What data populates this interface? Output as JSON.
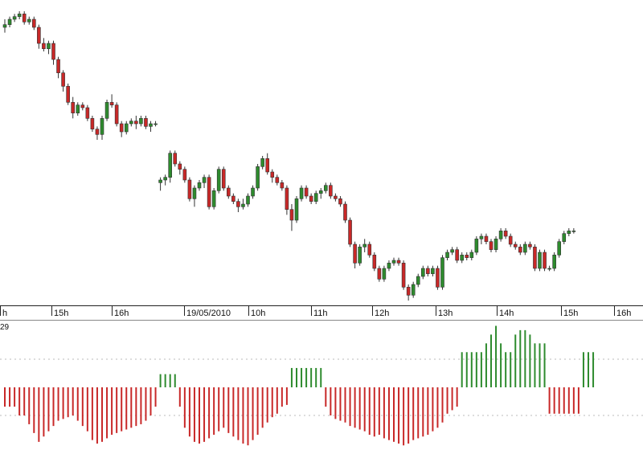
{
  "chart_data": [
    {
      "type": "candlestick",
      "title": "",
      "colors": {
        "up": "#2e8b2e",
        "down": "#c82828",
        "wick": "#333333"
      },
      "y_scale": "arbitrary, no price axis printed",
      "x_tick_labels": [
        "h",
        "15h",
        "16h",
        "19/05/2010",
        "10h",
        "11h",
        "12h",
        "13h",
        "14h",
        "15h",
        "16h"
      ],
      "candles": [
        {
          "o": 56.0,
          "h": 57.5,
          "l": 55.0,
          "c": 56.5
        },
        {
          "o": 56.5,
          "h": 58.0,
          "l": 56.0,
          "c": 57.5
        },
        {
          "o": 57.5,
          "h": 58.5,
          "l": 57.0,
          "c": 58.0
        },
        {
          "o": 58.0,
          "h": 59.0,
          "l": 57.5,
          "c": 58.5
        },
        {
          "o": 58.5,
          "h": 59.0,
          "l": 56.5,
          "c": 57.0
        },
        {
          "o": 57.0,
          "h": 58.0,
          "l": 56.5,
          "c": 57.5
        },
        {
          "o": 57.5,
          "h": 58.0,
          "l": 55.5,
          "c": 56.0
        },
        {
          "o": 56.0,
          "h": 56.5,
          "l": 52.0,
          "c": 53.0
        },
        {
          "o": 53.0,
          "h": 54.0,
          "l": 51.5,
          "c": 52.0
        },
        {
          "o": 52.0,
          "h": 53.5,
          "l": 51.0,
          "c": 53.0
        },
        {
          "o": 53.0,
          "h": 53.5,
          "l": 49.0,
          "c": 50.0
        },
        {
          "o": 50.0,
          "h": 50.5,
          "l": 46.5,
          "c": 47.5
        },
        {
          "o": 47.5,
          "h": 48.0,
          "l": 44.0,
          "c": 45.0
        },
        {
          "o": 45.0,
          "h": 45.5,
          "l": 41.5,
          "c": 42.0
        },
        {
          "o": 42.0,
          "h": 43.0,
          "l": 39.0,
          "c": 40.0
        },
        {
          "o": 40.0,
          "h": 42.0,
          "l": 39.5,
          "c": 41.5
        },
        {
          "o": 41.5,
          "h": 42.0,
          "l": 40.5,
          "c": 41.0
        },
        {
          "o": 41.0,
          "h": 41.5,
          "l": 38.5,
          "c": 39.0
        },
        {
          "o": 39.0,
          "h": 39.5,
          "l": 36.5,
          "c": 37.0
        },
        {
          "o": 37.0,
          "h": 37.5,
          "l": 35.0,
          "c": 36.0
        },
        {
          "o": 36.0,
          "h": 39.5,
          "l": 35.0,
          "c": 39.0
        },
        {
          "o": 39.0,
          "h": 42.5,
          "l": 38.5,
          "c": 42.0
        },
        {
          "o": 42.0,
          "h": 43.5,
          "l": 41.0,
          "c": 41.5
        },
        {
          "o": 41.5,
          "h": 42.0,
          "l": 37.5,
          "c": 38.0
        },
        {
          "o": 38.0,
          "h": 38.5,
          "l": 35.5,
          "c": 36.5
        },
        {
          "o": 36.5,
          "h": 38.5,
          "l": 36.0,
          "c": 38.0
        },
        {
          "o": 38.0,
          "h": 39.0,
          "l": 37.5,
          "c": 38.5
        },
        {
          "o": 38.5,
          "h": 39.5,
          "l": 37.0,
          "c": 38.0
        },
        {
          "o": 38.0,
          "h": 39.5,
          "l": 37.5,
          "c": 39.0
        },
        {
          "o": 39.0,
          "h": 39.5,
          "l": 37.0,
          "c": 37.5
        },
        {
          "o": 37.5,
          "h": 38.5,
          "l": 36.5,
          "c": 38.0
        },
        {
          "o": 38.0,
          "h": 38.5,
          "l": 37.5,
          "c": 38.0
        },
        {
          "o": 27.0,
          "h": 28.0,
          "l": 25.5,
          "c": 27.5
        },
        {
          "o": 27.5,
          "h": 28.5,
          "l": 26.5,
          "c": 28.0
        },
        {
          "o": 28.0,
          "h": 33.0,
          "l": 27.0,
          "c": 32.5
        },
        {
          "o": 32.5,
          "h": 33.0,
          "l": 30.0,
          "c": 30.5
        },
        {
          "o": 30.5,
          "h": 31.0,
          "l": 28.5,
          "c": 29.5
        },
        {
          "o": 29.5,
          "h": 30.0,
          "l": 27.0,
          "c": 27.5
        },
        {
          "o": 27.5,
          "h": 28.0,
          "l": 23.5,
          "c": 24.0
        },
        {
          "o": 24.0,
          "h": 26.5,
          "l": 22.5,
          "c": 26.0
        },
        {
          "o": 26.0,
          "h": 27.5,
          "l": 25.5,
          "c": 27.0
        },
        {
          "o": 27.0,
          "h": 28.5,
          "l": 26.0,
          "c": 28.0
        },
        {
          "o": 28.0,
          "h": 28.5,
          "l": 22.0,
          "c": 22.5
        },
        {
          "o": 22.5,
          "h": 26.0,
          "l": 22.0,
          "c": 25.5
        },
        {
          "o": 25.5,
          "h": 30.0,
          "l": 25.0,
          "c": 29.5
        },
        {
          "o": 29.5,
          "h": 30.0,
          "l": 25.5,
          "c": 26.0
        },
        {
          "o": 26.0,
          "h": 26.5,
          "l": 24.0,
          "c": 24.5
        },
        {
          "o": 24.5,
          "h": 25.0,
          "l": 23.0,
          "c": 23.5
        },
        {
          "o": 23.5,
          "h": 24.0,
          "l": 21.5,
          "c": 22.5
        },
        {
          "o": 22.5,
          "h": 24.0,
          "l": 22.0,
          "c": 23.0
        },
        {
          "o": 23.0,
          "h": 25.0,
          "l": 22.5,
          "c": 24.5
        },
        {
          "o": 24.5,
          "h": 26.5,
          "l": 24.0,
          "c": 26.0
        },
        {
          "o": 26.0,
          "h": 30.5,
          "l": 25.5,
          "c": 30.0
        },
        {
          "o": 30.0,
          "h": 32.0,
          "l": 29.5,
          "c": 31.5
        },
        {
          "o": 31.5,
          "h": 32.5,
          "l": 28.5,
          "c": 29.0
        },
        {
          "o": 29.0,
          "h": 29.5,
          "l": 27.0,
          "c": 28.0
        },
        {
          "o": 28.0,
          "h": 28.5,
          "l": 26.5,
          "c": 27.0
        },
        {
          "o": 27.0,
          "h": 27.5,
          "l": 25.5,
          "c": 26.0
        },
        {
          "o": 26.0,
          "h": 26.5,
          "l": 21.0,
          "c": 22.0
        },
        {
          "o": 22.0,
          "h": 23.0,
          "l": 18.0,
          "c": 20.0
        },
        {
          "o": 20.0,
          "h": 24.5,
          "l": 19.5,
          "c": 24.0
        },
        {
          "o": 24.0,
          "h": 26.5,
          "l": 23.5,
          "c": 26.0
        },
        {
          "o": 26.0,
          "h": 26.5,
          "l": 24.0,
          "c": 24.5
        },
        {
          "o": 24.5,
          "h": 25.0,
          "l": 23.0,
          "c": 23.5
        },
        {
          "o": 23.5,
          "h": 25.5,
          "l": 23.0,
          "c": 25.0
        },
        {
          "o": 25.0,
          "h": 26.0,
          "l": 24.0,
          "c": 25.5
        },
        {
          "o": 25.5,
          "h": 27.0,
          "l": 25.0,
          "c": 26.5
        },
        {
          "o": 26.5,
          "h": 27.0,
          "l": 24.0,
          "c": 24.5
        },
        {
          "o": 24.5,
          "h": 25.0,
          "l": 23.5,
          "c": 24.0
        },
        {
          "o": 24.0,
          "h": 24.5,
          "l": 22.5,
          "c": 23.0
        },
        {
          "o": 23.0,
          "h": 23.5,
          "l": 19.5,
          "c": 20.0
        },
        {
          "o": 20.0,
          "h": 20.5,
          "l": 15.0,
          "c": 15.5
        },
        {
          "o": 15.5,
          "h": 16.0,
          "l": 11.0,
          "c": 12.0
        },
        {
          "o": 12.0,
          "h": 15.5,
          "l": 11.5,
          "c": 15.0
        },
        {
          "o": 15.0,
          "h": 16.5,
          "l": 14.0,
          "c": 15.5
        },
        {
          "o": 15.5,
          "h": 16.0,
          "l": 13.0,
          "c": 13.5
        },
        {
          "o": 13.5,
          "h": 14.0,
          "l": 10.5,
          "c": 11.0
        },
        {
          "o": 11.0,
          "h": 11.5,
          "l": 8.5,
          "c": 9.0
        },
        {
          "o": 9.0,
          "h": 11.5,
          "l": 8.5,
          "c": 11.0
        },
        {
          "o": 11.0,
          "h": 12.5,
          "l": 10.5,
          "c": 12.0
        },
        {
          "o": 12.0,
          "h": 13.0,
          "l": 11.5,
          "c": 12.5
        },
        {
          "o": 12.5,
          "h": 13.0,
          "l": 11.5,
          "c": 12.0
        },
        {
          "o": 12.0,
          "h": 12.5,
          "l": 7.0,
          "c": 7.5
        },
        {
          "o": 7.5,
          "h": 8.0,
          "l": 5.0,
          "c": 6.0
        },
        {
          "o": 6.0,
          "h": 8.5,
          "l": 5.5,
          "c": 8.0
        },
        {
          "o": 8.0,
          "h": 10.0,
          "l": 7.5,
          "c": 9.5
        },
        {
          "o": 9.5,
          "h": 11.5,
          "l": 9.0,
          "c": 11.0
        },
        {
          "o": 11.0,
          "h": 11.5,
          "l": 9.5,
          "c": 10.0
        },
        {
          "o": 10.0,
          "h": 11.5,
          "l": 9.5,
          "c": 11.0
        },
        {
          "o": 11.0,
          "h": 11.5,
          "l": 7.0,
          "c": 7.5
        },
        {
          "o": 7.5,
          "h": 13.5,
          "l": 7.0,
          "c": 13.0
        },
        {
          "o": 13.0,
          "h": 14.5,
          "l": 12.5,
          "c": 14.0
        },
        {
          "o": 14.0,
          "h": 15.0,
          "l": 13.5,
          "c": 14.5
        },
        {
          "o": 14.5,
          "h": 15.0,
          "l": 12.0,
          "c": 12.5
        },
        {
          "o": 12.5,
          "h": 14.0,
          "l": 12.0,
          "c": 13.5
        },
        {
          "o": 13.5,
          "h": 14.0,
          "l": 12.5,
          "c": 13.0
        },
        {
          "o": 13.0,
          "h": 14.5,
          "l": 12.5,
          "c": 14.0
        },
        {
          "o": 14.0,
          "h": 17.0,
          "l": 13.5,
          "c": 16.5
        },
        {
          "o": 16.5,
          "h": 17.5,
          "l": 15.5,
          "c": 17.0
        },
        {
          "o": 17.0,
          "h": 17.5,
          "l": 15.5,
          "c": 16.0
        },
        {
          "o": 16.0,
          "h": 16.5,
          "l": 14.0,
          "c": 14.5
        },
        {
          "o": 14.5,
          "h": 17.0,
          "l": 14.0,
          "c": 16.5
        },
        {
          "o": 16.5,
          "h": 18.5,
          "l": 16.0,
          "c": 18.0
        },
        {
          "o": 18.0,
          "h": 18.5,
          "l": 16.5,
          "c": 17.0
        },
        {
          "o": 17.0,
          "h": 17.5,
          "l": 15.0,
          "c": 15.5
        },
        {
          "o": 15.5,
          "h": 16.0,
          "l": 14.5,
          "c": 15.0
        },
        {
          "o": 15.0,
          "h": 15.5,
          "l": 13.5,
          "c": 14.0
        },
        {
          "o": 14.0,
          "h": 16.0,
          "l": 13.5,
          "c": 15.5
        },
        {
          "o": 15.5,
          "h": 16.0,
          "l": 14.5,
          "c": 15.0
        },
        {
          "o": 15.0,
          "h": 15.5,
          "l": 10.5,
          "c": 11.0
        },
        {
          "o": 11.0,
          "h": 14.5,
          "l": 10.5,
          "c": 14.0
        },
        {
          "o": 14.0,
          "h": 14.5,
          "l": 10.5,
          "c": 11.0
        },
        {
          "o": 11.0,
          "h": 11.5,
          "l": 10.5,
          "c": 11.0
        },
        {
          "o": 11.0,
          "h": 14.0,
          "l": 10.5,
          "c": 13.5
        },
        {
          "o": 13.5,
          "h": 16.5,
          "l": 13.0,
          "c": 16.0
        },
        {
          "o": 16.0,
          "h": 18.0,
          "l": 15.5,
          "c": 17.5
        },
        {
          "o": 17.5,
          "h": 18.5,
          "l": 17.0,
          "c": 18.0
        },
        {
          "o": 18.0,
          "h": 18.5,
          "l": 17.5,
          "c": 18.0
        }
      ]
    },
    {
      "type": "bar",
      "indicator_label": "29",
      "colors": {
        "positive": "#2e8b2e",
        "negative": "#c82828"
      },
      "ylim": [
        -62,
        64
      ],
      "values": [
        -22,
        -22,
        -22,
        -32,
        -32,
        -42,
        -52,
        -62,
        -56,
        -50,
        -44,
        -38,
        -36,
        -34,
        -32,
        -38,
        -44,
        -50,
        -60,
        -64,
        -62,
        -58,
        -54,
        -52,
        -50,
        -48,
        -46,
        -44,
        -42,
        -38,
        -32,
        -22,
        15,
        15,
        15,
        15,
        -22,
        -46,
        -56,
        -62,
        -64,
        -62,
        -58,
        -54,
        -50,
        -46,
        -52,
        -56,
        -60,
        -64,
        -66,
        -60,
        -54,
        -46,
        -40,
        -34,
        -30,
        -22,
        -20,
        22,
        22,
        22,
        22,
        22,
        22,
        22,
        -22,
        -32,
        -36,
        -38,
        -40,
        -44,
        -46,
        -48,
        -50,
        -54,
        -56,
        -54,
        -58,
        -60,
        -62,
        -64,
        -66,
        -64,
        -60,
        -58,
        -56,
        -54,
        -50,
        -46,
        -40,
        -30,
        -26,
        -22,
        40,
        40,
        40,
        40,
        40,
        50,
        60,
        70,
        50,
        40,
        40,
        60,
        65,
        65,
        60,
        50,
        50,
        50,
        -30,
        -30,
        -30,
        -30,
        -30,
        -30,
        -30,
        40,
        40,
        40
      ]
    }
  ]
}
